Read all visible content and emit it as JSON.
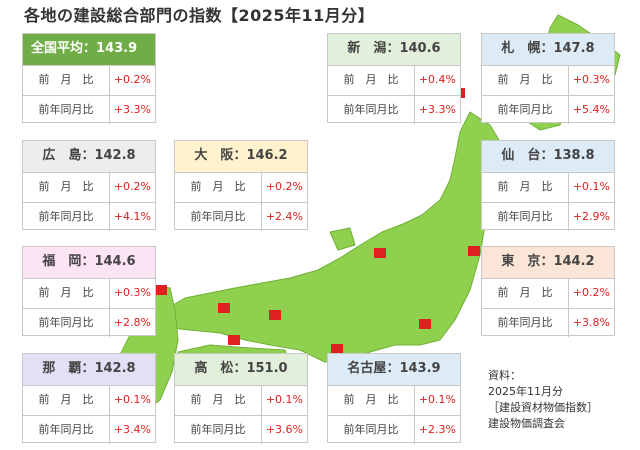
{
  "title": "各地の建設総合部門の指数【2025年11月分】",
  "colors": {
    "map_land": "#8fd14f",
    "map_edge": "#6fb035",
    "marker": "#e02020",
    "value_text": "#e02020",
    "national_header": "#70ad47"
  },
  "cards": [
    {
      "id": "national",
      "name": "全国平均",
      "index": "143.9",
      "sep": "：",
      "mom_label": "前　月　比",
      "mom": "+0.2%",
      "yoy_label": "前年同月比",
      "yoy": "+3.3%",
      "header_color": "#70ad47"
    },
    {
      "id": "niigata",
      "name": "新　潟",
      "index": "140.6",
      "sep": "：",
      "mom_label": "前　月　比",
      "mom": "+0.4%",
      "yoy_label": "前年同月比",
      "yoy": "+3.3%",
      "header_color": "#e2efda"
    },
    {
      "id": "sapporo",
      "name": "札　幌",
      "index": "147.8",
      "sep": "：",
      "mom_label": "前　月　比",
      "mom": "+0.3%",
      "yoy_label": "前年同月比",
      "yoy": "+5.4%",
      "header_color": "#ddebf7"
    },
    {
      "id": "hiroshima",
      "name": "広　島",
      "index": "142.8",
      "sep": "：",
      "mom_label": "前　月　比",
      "mom": "+0.2%",
      "yoy_label": "前年同月比",
      "yoy": "+4.1%",
      "header_color": "#ededed"
    },
    {
      "id": "osaka",
      "name": "大　阪",
      "index": "146.2",
      "sep": "：",
      "mom_label": "前　月　比",
      "mom": "+0.2%",
      "yoy_label": "前年同月比",
      "yoy": "+2.4%",
      "header_color": "#fff2cc"
    },
    {
      "id": "sendai",
      "name": "仙　台",
      "index": "138.8",
      "sep": "：",
      "mom_label": "前　月　比",
      "mom": "+0.1%",
      "yoy_label": "前年同月比",
      "yoy": "+2.9%",
      "header_color": "#ddebf7"
    },
    {
      "id": "fukuoka",
      "name": "福　岡",
      "index": "144.6",
      "sep": "：",
      "mom_label": "前　月　比",
      "mom": "+0.3%",
      "yoy_label": "前年同月比",
      "yoy": "+2.8%",
      "header_color": "#fce4f4"
    },
    {
      "id": "tokyo",
      "name": "東　京",
      "index": "144.2",
      "sep": "：",
      "mom_label": "前　月　比",
      "mom": "+0.2%",
      "yoy_label": "前年同月比",
      "yoy": "+3.8%",
      "header_color": "#fbe5d6"
    },
    {
      "id": "naha",
      "name": "那　覇",
      "index": "142.8",
      "sep": "：",
      "mom_label": "前　月　比",
      "mom": "+0.1%",
      "yoy_label": "前年同月比",
      "yoy": "+3.4%",
      "header_color": "#e4dff5"
    },
    {
      "id": "takamatsu",
      "name": "高　松",
      "index": "151.0",
      "sep": "：",
      "mom_label": "前　月　比",
      "mom": "+0.1%",
      "yoy_label": "前年同月比",
      "yoy": "+3.6%",
      "header_color": "#e2efda"
    },
    {
      "id": "nagoya",
      "name": "名古屋",
      "index": "143.9",
      "sep": "：",
      "mom_label": "前　月　比",
      "mom": "+0.1%",
      "yoy_label": "前年同月比",
      "yoy": "+2.3%",
      "header_color": "#ddebf7"
    }
  ],
  "source": {
    "line1": "資料：",
    "line2": "2025年11月分",
    "line3": "［建設資材物価指数］",
    "line4": "建設物価調査会"
  }
}
